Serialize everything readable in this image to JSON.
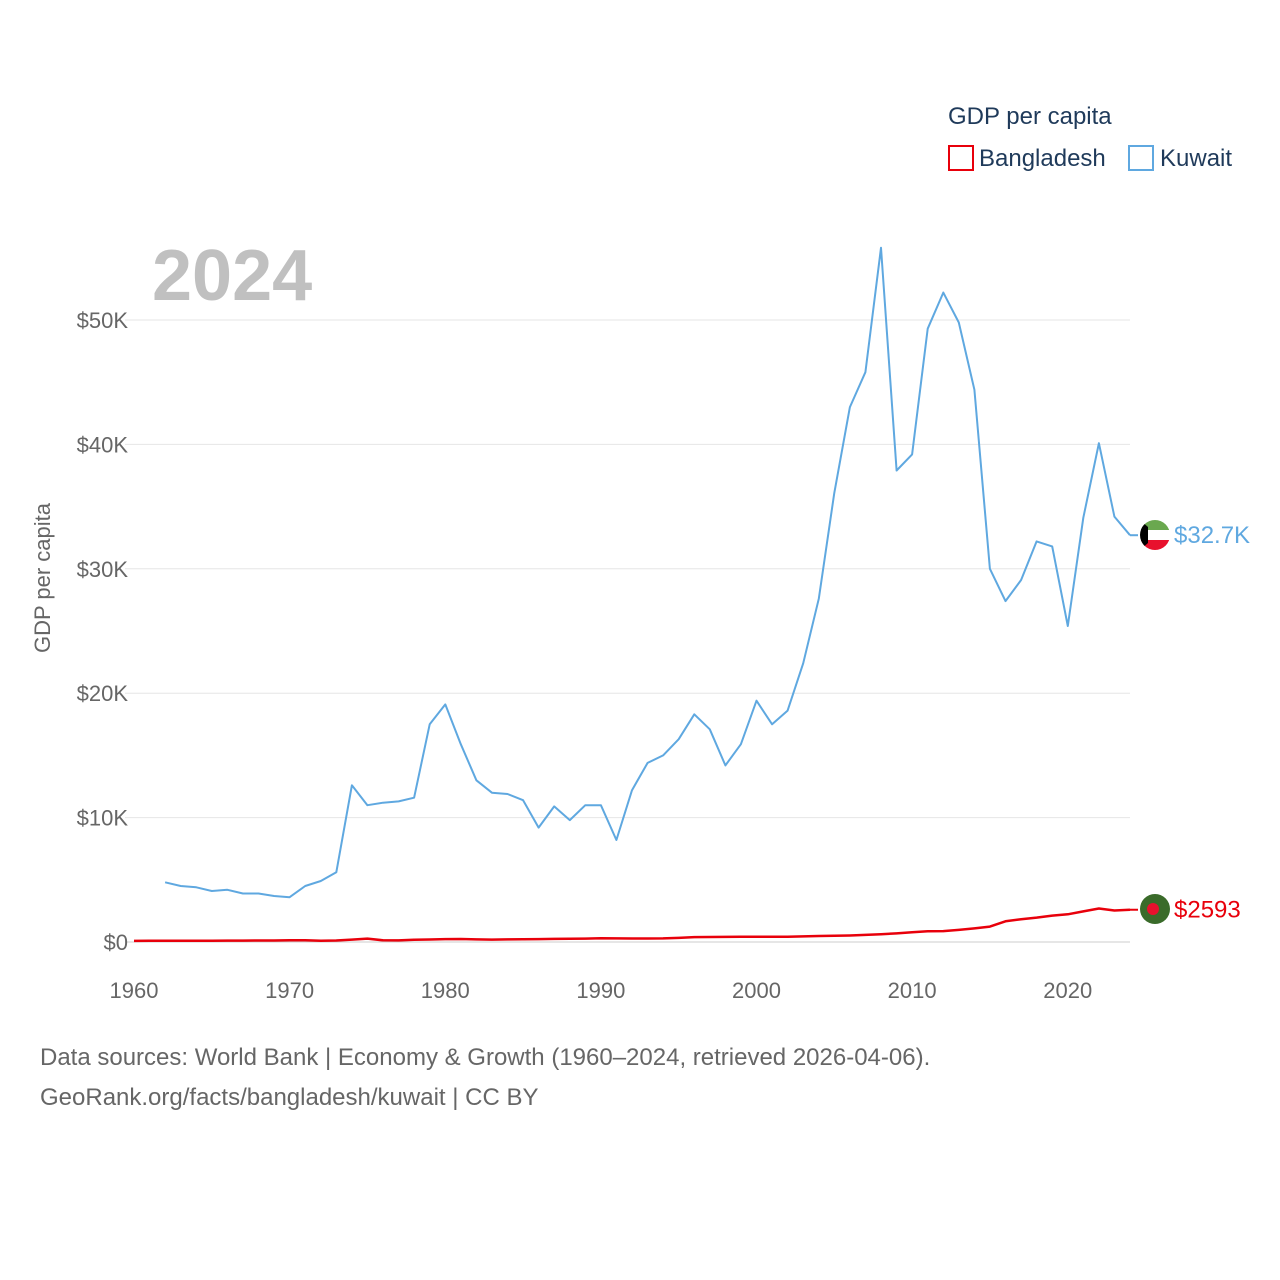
{
  "chart_data": {
    "type": "line",
    "title": "2024",
    "ylabel": "GDP per capita",
    "xlabel": "",
    "xlim": [
      1960,
      2024
    ],
    "ylim": [
      0,
      55000
    ],
    "x_ticks": [
      1960,
      1970,
      1980,
      1990,
      2000,
      2010,
      2020
    ],
    "x_tick_labels": [
      "1960",
      "1970",
      "1980",
      "1990",
      "2000",
      "2010",
      "2020"
    ],
    "y_ticks": [
      0,
      10000,
      20000,
      30000,
      40000,
      50000
    ],
    "y_tick_labels": [
      "$0",
      "$10K",
      "$20K",
      "$30K",
      "$40K",
      "$50K"
    ],
    "legend": {
      "title": "GDP per capita",
      "position": "top-right"
    },
    "series": [
      {
        "name": "Bangladesh",
        "color": "#e8000b",
        "end_label": "$2593",
        "x": [
          1960,
          1961,
          1962,
          1963,
          1964,
          1965,
          1966,
          1967,
          1968,
          1969,
          1970,
          1971,
          1972,
          1973,
          1974,
          1975,
          1976,
          1977,
          1978,
          1979,
          1980,
          1981,
          1982,
          1983,
          1984,
          1985,
          1986,
          1987,
          1988,
          1989,
          1990,
          1991,
          1992,
          1993,
          1994,
          1995,
          1996,
          1997,
          1998,
          1999,
          2000,
          2001,
          2002,
          2003,
          2004,
          2005,
          2006,
          2007,
          2008,
          2009,
          2010,
          2011,
          2012,
          2013,
          2014,
          2015,
          2016,
          2017,
          2018,
          2019,
          2020,
          2021,
          2022,
          2023,
          2024
        ],
        "values": [
          90,
          95,
          98,
          100,
          102,
          105,
          110,
          115,
          118,
          120,
          140,
          135,
          95,
          120,
          190,
          270,
          140,
          130,
          180,
          200,
          230,
          240,
          210,
          190,
          210,
          220,
          230,
          250,
          260,
          270,
          300,
          290,
          280,
          280,
          290,
          330,
          390,
          400,
          410,
          420,
          420,
          420,
          420,
          450,
          480,
          500,
          520,
          570,
          630,
          690,
          780,
          860,
          880,
          970,
          1090,
          1240,
          1660,
          1830,
          1960,
          2120,
          2230,
          2460,
          2690,
          2530,
          2593
        ]
      },
      {
        "name": "Kuwait",
        "color": "#5fa8e0",
        "end_label": "$32.7K",
        "x": [
          1962,
          1963,
          1964,
          1965,
          1966,
          1967,
          1968,
          1969,
          1970,
          1971,
          1972,
          1973,
          1974,
          1975,
          1976,
          1977,
          1978,
          1979,
          1980,
          1981,
          1982,
          1983,
          1984,
          1985,
          1986,
          1987,
          1988,
          1989,
          1990,
          1991,
          1992,
          1993,
          1994,
          1995,
          1996,
          1997,
          1998,
          1999,
          2000,
          2001,
          2002,
          2003,
          2004,
          2005,
          2006,
          2007,
          2008,
          2009,
          2010,
          2011,
          2012,
          2013,
          2014,
          2015,
          2016,
          2017,
          2018,
          2019,
          2020,
          2021,
          2022,
          2023,
          2024
        ],
        "values": [
          4800,
          4500,
          4400,
          4100,
          4200,
          3900,
          3900,
          3700,
          3600,
          4500,
          4900,
          5600,
          12600,
          11000,
          11200,
          11300,
          11600,
          17500,
          19100,
          15900,
          13000,
          12000,
          11900,
          11400,
          9200,
          10900,
          9800,
          11000,
          11000,
          8200,
          12200,
          14400,
          15000,
          16300,
          18300,
          17100,
          14200,
          15900,
          19400,
          17500,
          18600,
          22400,
          27600,
          36100,
          43000,
          45800,
          55800,
          37900,
          39200,
          49300,
          52200,
          49800,
          44400,
          30000,
          27400,
          29100,
          32200,
          31800,
          25400,
          34100,
          40100,
          34200,
          32700
        ]
      }
    ]
  },
  "footer": {
    "line1": "Data sources: World Bank | Economy & Growth (1960–2024, retrieved 2026-04-06).",
    "line2": "GeoRank.org/facts/bangladesh/kuwait | CC BY"
  }
}
